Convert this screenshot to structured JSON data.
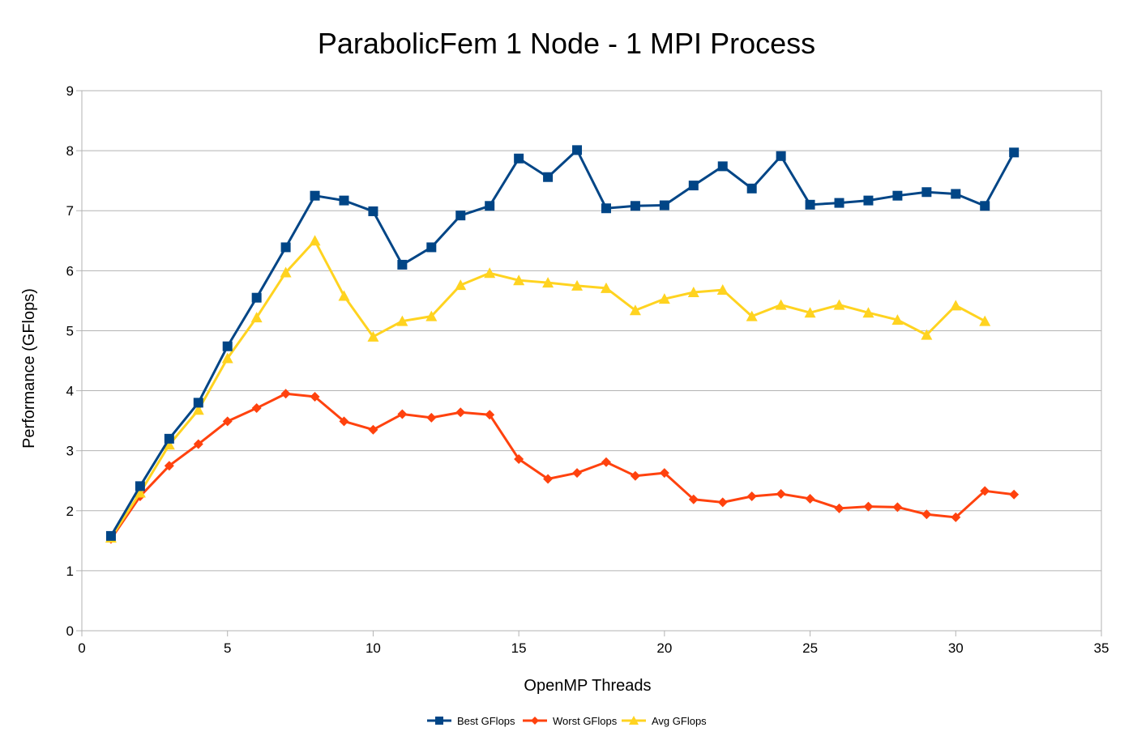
{
  "chart_data": {
    "type": "line",
    "title": "ParabolicFem 1 Node - 1 MPI Process",
    "xlabel": "OpenMP Threads",
    "ylabel": "Performance (GFlops)",
    "xlim": [
      0,
      35
    ],
    "ylim": [
      0,
      9
    ],
    "xticks": [
      0,
      5,
      10,
      15,
      20,
      25,
      30,
      35
    ],
    "yticks": [
      0,
      1,
      2,
      3,
      4,
      5,
      6,
      7,
      8,
      9
    ],
    "grid": true,
    "legend_position": "bottom",
    "series": [
      {
        "name": "Best GFlops",
        "color": "#004586",
        "marker": "square",
        "x": [
          1,
          2,
          3,
          4,
          5,
          6,
          7,
          8,
          9,
          10,
          11,
          12,
          13,
          14,
          15,
          16,
          17,
          18,
          19,
          20,
          21,
          22,
          23,
          24,
          25,
          26,
          27,
          28,
          29,
          30,
          31,
          32
        ],
        "values": [
          1.58,
          2.41,
          3.2,
          3.8,
          4.74,
          5.55,
          6.39,
          7.25,
          7.17,
          6.99,
          6.1,
          6.39,
          6.92,
          7.08,
          7.87,
          7.56,
          8.01,
          7.04,
          7.08,
          7.09,
          7.42,
          7.74,
          7.37,
          7.91,
          7.1,
          7.13,
          7.17,
          7.25,
          7.31,
          7.28,
          7.08,
          7.97
        ]
      },
      {
        "name": "Worst GFlops",
        "color": "#ff420e",
        "marker": "diamond",
        "x": [
          1,
          2,
          3,
          4,
          5,
          6,
          7,
          8,
          9,
          10,
          11,
          12,
          13,
          14,
          15,
          16,
          17,
          18,
          19,
          20,
          21,
          22,
          23,
          24,
          25,
          26,
          27,
          28,
          29,
          30,
          31,
          32
        ],
        "values": [
          1.53,
          2.24,
          2.75,
          3.11,
          3.49,
          3.71,
          3.95,
          3.9,
          3.49,
          3.35,
          3.61,
          3.55,
          3.64,
          3.6,
          2.86,
          2.53,
          2.63,
          2.81,
          2.58,
          2.63,
          2.19,
          2.14,
          2.24,
          2.28,
          2.2,
          2.04,
          2.07,
          2.06,
          1.94,
          1.89,
          2.33,
          2.27
        ]
      },
      {
        "name": "Avg GFlops",
        "color": "#ffd320",
        "marker": "triangle",
        "x": [
          1,
          2,
          3,
          4,
          5,
          6,
          7,
          8,
          9,
          10,
          11,
          12,
          13,
          14,
          15,
          16,
          17,
          18,
          19,
          20,
          21,
          22,
          23,
          24,
          25,
          26,
          27,
          28,
          29,
          30,
          31
        ],
        "values": [
          1.55,
          2.3,
          3.1,
          3.68,
          4.54,
          5.22,
          5.97,
          6.5,
          5.58,
          4.9,
          5.16,
          5.24,
          5.76,
          5.96,
          5.84,
          5.8,
          5.75,
          5.71,
          5.34,
          5.53,
          5.64,
          5.68,
          5.24,
          5.43,
          5.3,
          5.43,
          5.3,
          5.18,
          4.93,
          5.42,
          5.16
        ]
      }
    ]
  }
}
